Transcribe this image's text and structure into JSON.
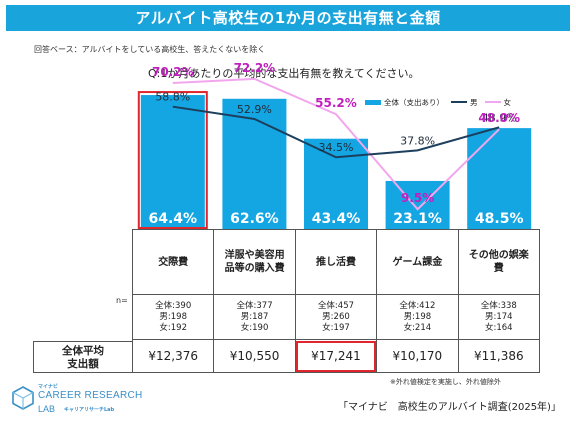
{
  "header": {
    "title": "アルバイト高校生の1か月の支出有無と金額"
  },
  "base_note": "回答ベース：アルバイトをしている高校生、答えたくないを除く",
  "question": "Q:1か月あたりの平均的な支出有無を教えてください。",
  "legend": {
    "bar": "全体（支出あり）",
    "male": "男",
    "female": "女"
  },
  "colors": {
    "title_bg": "#19a4dc",
    "bar": "#14a6e3",
    "male_line": "#1c3f5e",
    "female_line": "#f2a6ee",
    "female_label": "#c21fc0",
    "highlight": "#e0262c"
  },
  "chart_data": {
    "type": "bar",
    "categories": [
      "交際費",
      "洋服や美容用品等の購入費",
      "推し活費",
      "ゲーム課金",
      "その他の娯楽費"
    ],
    "ylim": [
      0,
      75
    ],
    "series": [
      {
        "name": "全体（支出あり）",
        "kind": "bar",
        "values": [
          64.4,
          62.6,
          43.4,
          23.1,
          48.5
        ]
      },
      {
        "name": "男",
        "kind": "line",
        "values": [
          58.8,
          52.9,
          34.5,
          37.8,
          48.9
        ]
      },
      {
        "name": "女",
        "kind": "line",
        "values": [
          70.2,
          72.2,
          55.2,
          9.5,
          48.0
        ]
      }
    ],
    "bar_labels": [
      "64.4%",
      "62.6%",
      "43.4%",
      "23.1%",
      "48.5%"
    ],
    "male_labels": [
      "58.8%",
      "52.9%",
      "34.5%",
      "37.8%",
      "48.9%"
    ],
    "female_labels": [
      "70.2%",
      "72.2%",
      "55.2%",
      "9.5%",
      "48.0%"
    ],
    "highlighted_category_index": 0
  },
  "table": {
    "categories": [
      {
        "line1": "交際費",
        "line2": ""
      },
      {
        "line1": "洋服や美容用",
        "line2": "品等の購入費"
      },
      {
        "line1": "推し活費",
        "line2": ""
      },
      {
        "line1": "ゲーム課金",
        "line2": ""
      },
      {
        "line1": "その他の娯楽",
        "line2": "費"
      }
    ],
    "n_label": "n=",
    "n": [
      {
        "total": "全体:390",
        "male": "男:198",
        "female": "女:192"
      },
      {
        "total": "全体:377",
        "male": "男:187",
        "female": "女:190"
      },
      {
        "total": "全体:457",
        "male": "男:260",
        "female": "女:197"
      },
      {
        "total": "全体:412",
        "male": "男:198",
        "female": "女:214"
      },
      {
        "total": "全体:338",
        "male": "男:174",
        "female": "女:164"
      }
    ],
    "amount_label_line1": "全体平均",
    "amount_label_line2": "支出額",
    "amounts": [
      "¥12,376",
      "¥10,550",
      "¥17,241",
      "¥10,170",
      "¥11,386"
    ],
    "highlighted_amount_index": 2
  },
  "footnote": "※外れ値検定を実施し、外れ値除外",
  "source": "「マイナビ　高校生のアルバイト調査(2025年)」",
  "logo": {
    "small": "マイナビ",
    "big": "CAREER RESEARCH",
    "lab": "LAB",
    "sub": "キャリアリサーチLab"
  }
}
